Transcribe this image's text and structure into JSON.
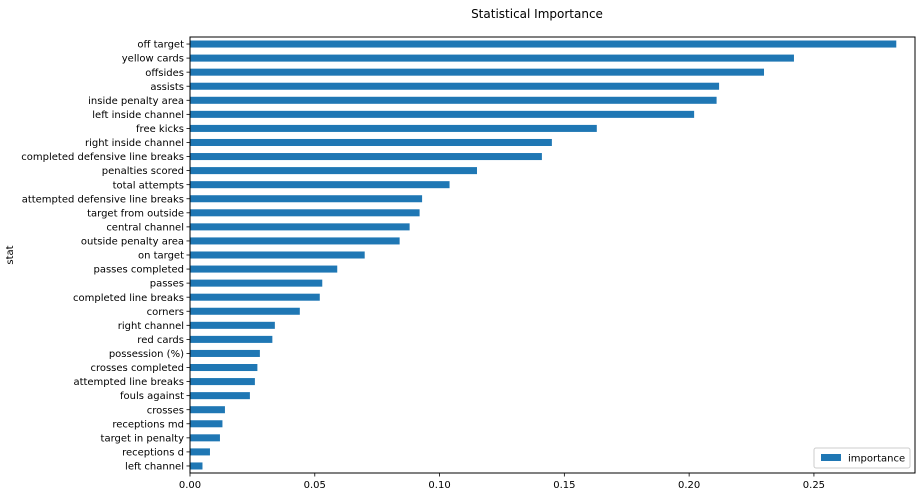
{
  "chart_data": {
    "type": "bar",
    "orientation": "horizontal",
    "title": "Statistical Importance",
    "ylabel": "stat",
    "xlabel": "",
    "xlim": [
      0,
      0.2905
    ],
    "xticks": [
      0.0,
      0.05,
      0.1,
      0.15,
      0.2,
      0.25
    ],
    "xtick_labels": [
      "0.00",
      "0.05",
      "0.10",
      "0.15",
      "0.20",
      "0.25"
    ],
    "grid": false,
    "legend_position": "bottom-right",
    "bar_color": "#1f77b4",
    "categories": [
      "off target",
      "yellow cards",
      "offsides",
      "assists",
      "inside penalty area",
      "left inside channel",
      "free kicks",
      "right inside channel",
      "completed defensive line breaks",
      "penalties scored",
      "total attempts",
      "attempted defensive line breaks",
      "target from outside",
      "central channel",
      "outside penalty area",
      "on target",
      "passes completed",
      "passes",
      "completed line breaks",
      "corners",
      "right channel",
      "red cards",
      "possession (%)",
      "crosses completed",
      "attempted line breaks",
      "fouls against",
      "crosses",
      "receptions md",
      "target in penalty",
      "receptions d",
      "left channel"
    ],
    "series": [
      {
        "name": "importance",
        "values": [
          0.283,
          0.242,
          0.23,
          0.212,
          0.211,
          0.202,
          0.163,
          0.145,
          0.141,
          0.115,
          0.104,
          0.093,
          0.092,
          0.088,
          0.084,
          0.07,
          0.059,
          0.053,
          0.052,
          0.044,
          0.034,
          0.033,
          0.028,
          0.027,
          0.026,
          0.024,
          0.014,
          0.013,
          0.012,
          0.008,
          0.005
        ]
      }
    ]
  }
}
